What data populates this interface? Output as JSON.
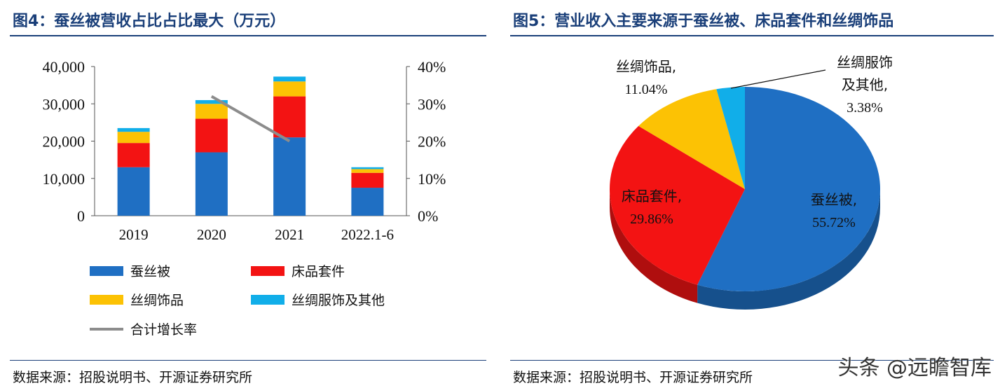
{
  "left_panel": {
    "title": "图4：蚕丝被营收占比占比最大（万元）",
    "source": "数据来源：招股说明书、开源证券研究所"
  },
  "right_panel": {
    "title": "图5：营业收入主要来源于蚕丝被、床品套件和丝绸饰品",
    "source": "数据来源：招股说明书、开源证券研究所"
  },
  "watermark": "头条 @远瞻智库",
  "colors": {
    "title": "#1a3f79",
    "silk_quilt": "#1f6fc3",
    "bedding": "#f31313",
    "silk_accessories": "#fcc204",
    "apparel_other": "#11aee9",
    "growth_line": "#8c8c8c"
  },
  "chart_data": [
    {
      "type": "bar",
      "stacked": true,
      "categories": [
        "2019",
        "2020",
        "2021",
        "2022.1-6"
      ],
      "series": [
        {
          "name": "蚕丝被",
          "color": "#1f6fc3",
          "values": [
            13000,
            17000,
            21000,
            7500
          ]
        },
        {
          "name": "床品套件",
          "color": "#f31313",
          "values": [
            6500,
            9000,
            11000,
            4000
          ]
        },
        {
          "name": "丝绸饰品",
          "color": "#fcc204",
          "values": [
            3000,
            4000,
            4000,
            1000
          ]
        },
        {
          "name": "丝绸服饰及其他",
          "color": "#11aee9",
          "values": [
            1000,
            1000,
            1300,
            500
          ]
        }
      ],
      "line_series": {
        "name": "合计增长率",
        "color": "#8c8c8c",
        "axis": "right",
        "x": [
          "2020",
          "2021"
        ],
        "values": [
          0.32,
          0.2
        ]
      },
      "ylim": [
        0,
        40000
      ],
      "y_ticks": [
        "0",
        "10,000",
        "20,000",
        "30,000",
        "40,000"
      ],
      "y2lim": [
        0,
        0.4
      ],
      "y2_ticks": [
        "0%",
        "10%",
        "20%",
        "30%",
        "40%"
      ],
      "legend_position": "bottom",
      "grid": false
    },
    {
      "type": "pie",
      "style": "3d",
      "slices": [
        {
          "label": "蚕丝被",
          "pct_label": "55.72%",
          "value": 55.72,
          "color": "#1f6fc3"
        },
        {
          "label": "床品套件",
          "pct_label": "29.86%",
          "value": 29.86,
          "color": "#f31313"
        },
        {
          "label": "丝绸饰品",
          "pct_label": "11.04%",
          "value": 11.04,
          "color": "#fcc204"
        },
        {
          "label": "丝绸服饰及其他",
          "pct_label": "3.38%",
          "value": 3.38,
          "color": "#11aee9"
        }
      ]
    }
  ]
}
